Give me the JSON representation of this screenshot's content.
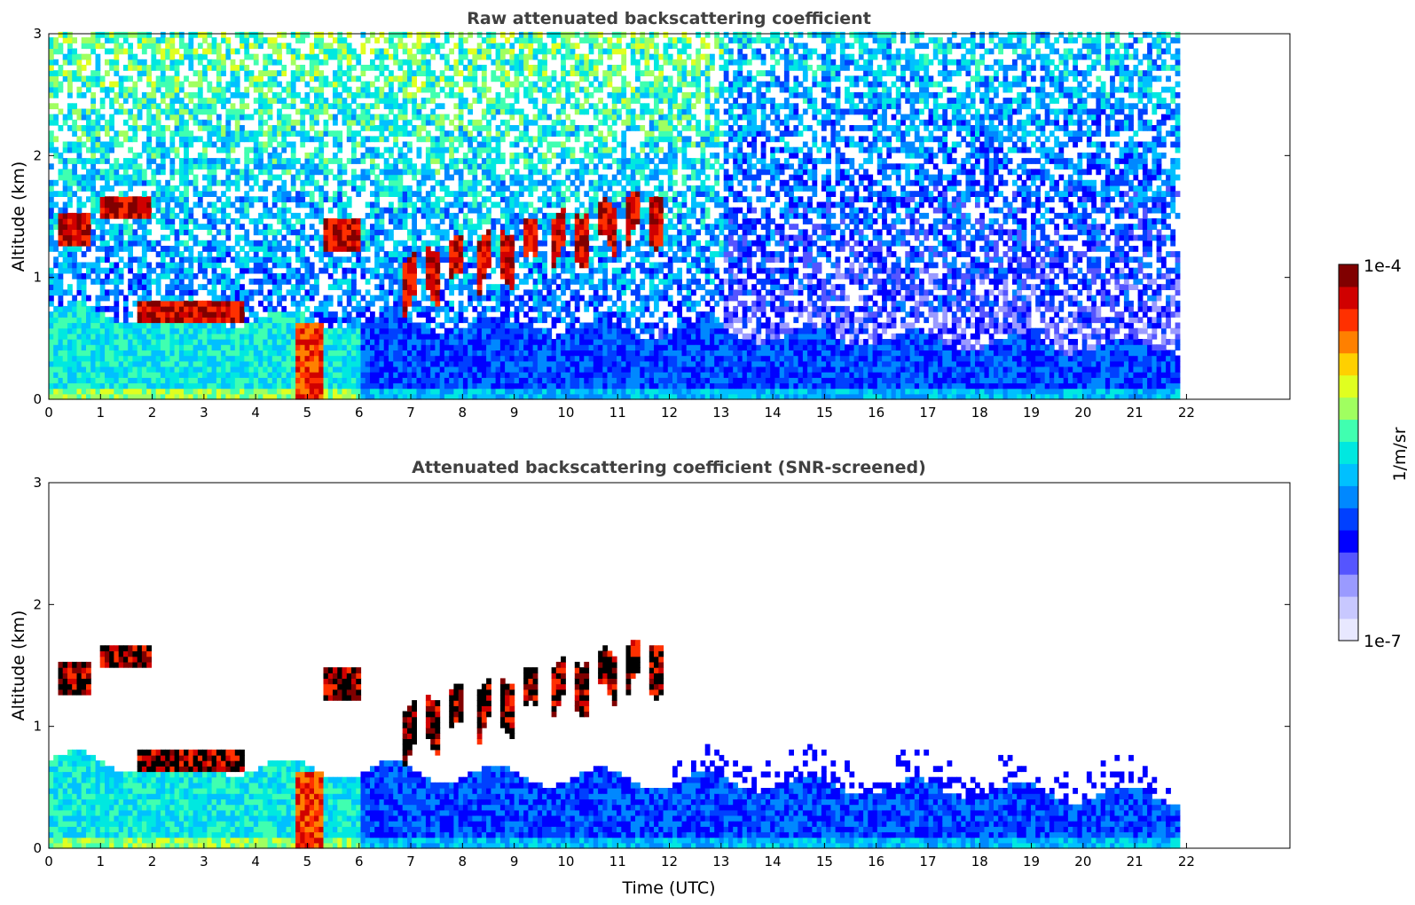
{
  "chart_data": [
    {
      "type": "heatmap",
      "title": "Raw attenuated backscattering coefficient",
      "xlabel": "",
      "ylabel": "Altitude (km)",
      "x_range": [
        0,
        24
      ],
      "data_x_range": [
        0,
        21.8
      ],
      "y_range": [
        0,
        3
      ],
      "x_ticks": [
        "0",
        "1",
        "2",
        "3",
        "4",
        "5",
        "6",
        "7",
        "8",
        "9",
        "10",
        "11",
        "12",
        "13",
        "14",
        "15",
        "16",
        "17",
        "18",
        "19",
        "20",
        "21",
        "22"
      ],
      "y_ticks": [
        "0",
        "1",
        "2",
        "3"
      ],
      "screened": false,
      "features": [
        {
          "name": "boundary layer aerosol",
          "t": [
            0,
            21.8
          ],
          "alt_top_km": [
            0.7,
            0.4
          ]
        },
        {
          "name": "cloud layer",
          "t": [
            0.1,
            0.75
          ],
          "alt_km": [
            1.25,
            1.5
          ]
        },
        {
          "name": "cloud layer",
          "t": [
            0.95,
            1.9
          ],
          "alt_km": [
            1.45,
            1.65
          ]
        },
        {
          "name": "cloud layer",
          "t": [
            1.7,
            3.7
          ],
          "alt_km": [
            0.6,
            0.8
          ]
        },
        {
          "name": "precipitation / fog column",
          "t": [
            4.7,
            5.3
          ],
          "alt_km": [
            0,
            0.6
          ]
        },
        {
          "name": "cloud layer",
          "t": [
            5.3,
            6.0
          ],
          "alt_km": [
            1.2,
            1.45
          ]
        },
        {
          "name": "rising cloud field",
          "t": [
            6.5,
            12.0
          ],
          "alt_km": [
            0.8,
            1.75
          ]
        }
      ]
    },
    {
      "type": "heatmap",
      "title": "Attenuated backscattering coefficient (SNR-screened)",
      "xlabel": "Time (UTC)",
      "ylabel": "Altitude (km)",
      "x_range": [
        0,
        24
      ],
      "data_x_range": [
        0,
        21.8
      ],
      "y_range": [
        0,
        3
      ],
      "x_ticks": [
        "0",
        "1",
        "2",
        "3",
        "4",
        "5",
        "6",
        "7",
        "8",
        "9",
        "10",
        "11",
        "12",
        "13",
        "14",
        "15",
        "16",
        "17",
        "18",
        "19",
        "20",
        "21",
        "22"
      ],
      "y_ticks": [
        "0",
        "1",
        "2",
        "3"
      ],
      "screened": true
    }
  ],
  "colorbar": {
    "label": "1/m/sr",
    "max_label": "1e-4",
    "min_label": "1e-7",
    "scale": "log",
    "colors": [
      "#e8e8ff",
      "#c8c8ff",
      "#9a9aff",
      "#5555ff",
      "#0000ff",
      "#0040ff",
      "#0088ff",
      "#00c0ff",
      "#00e8e0",
      "#40ffb0",
      "#a0ff60",
      "#e0ff20",
      "#ffd000",
      "#ff8000",
      "#ff3000",
      "#d00000",
      "#800000"
    ]
  }
}
